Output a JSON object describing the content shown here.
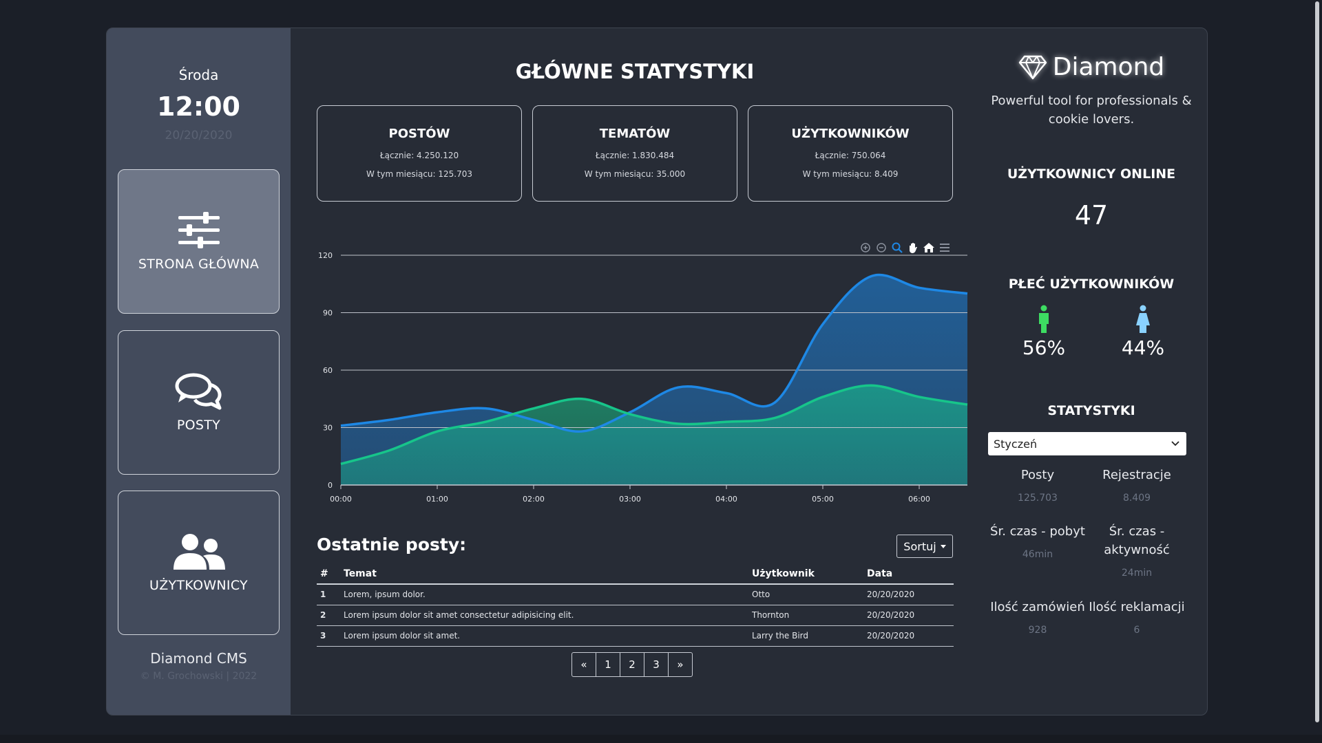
{
  "sidebar": {
    "day": "Środa",
    "time": "12:00",
    "date": "20/20/2020",
    "nav": [
      {
        "label": "STRONA GŁÓWNA"
      },
      {
        "label": "POSTY"
      },
      {
        "label": "UŻYTKOWNICY"
      }
    ],
    "cms_name": "Diamond CMS",
    "copyright": "© M. Grochowski | 2022"
  },
  "main": {
    "title": "GŁÓWNE STATYSTYKI",
    "cards": [
      {
        "title": "POSTÓW",
        "total": "Łącznie: 4.250.120",
        "month": "W tym miesiącu: 125.703"
      },
      {
        "title": "TEMATÓW",
        "total": "Łącznie: 1.830.484",
        "month": "W tym miesiącu: 35.000"
      },
      {
        "title": "UŻYTKOWNIKÓW",
        "total": "Łącznie: 750.064",
        "month": "W tym miesiącu: 8.409"
      }
    ],
    "posts_title": "Ostatnie posty:",
    "sort_label": "Sortuj",
    "table": {
      "headers": [
        "#",
        "Temat",
        "Użytkownik",
        "Data"
      ],
      "rows": [
        {
          "num": "1",
          "topic": "Lorem, ipsum dolor.",
          "user": "Otto",
          "date": "20/20/2020"
        },
        {
          "num": "2",
          "topic": "Lorem ipsum dolor sit amet consectetur adipisicing elit.",
          "user": "Thornton",
          "date": "20/20/2020"
        },
        {
          "num": "3",
          "topic": "Lorem ipsum dolor sit amet.",
          "user": "Larry the Bird",
          "date": "20/20/2020"
        }
      ]
    },
    "pagination": [
      "«",
      "1",
      "2",
      "3",
      "»"
    ]
  },
  "chart_data": {
    "type": "area",
    "x": [
      "00:00",
      "00:30",
      "01:00",
      "01:30",
      "02:00",
      "02:30",
      "03:00",
      "03:30",
      "04:00",
      "04:30",
      "05:00",
      "05:30",
      "06:00",
      "06:30"
    ],
    "categories": [
      "00:00",
      "01:00",
      "02:00",
      "03:00",
      "04:00",
      "05:00",
      "06:00"
    ],
    "series": [
      {
        "values": [
          31,
          34,
          38,
          40,
          34,
          28,
          38,
          51,
          48,
          43,
          84,
          109,
          103,
          100
        ],
        "color": "#1e88e5"
      },
      {
        "values": [
          11,
          18,
          28,
          33,
          40,
          45,
          37,
          32,
          33,
          35,
          46,
          52,
          46,
          42
        ],
        "color": "#17c58a"
      }
    ],
    "yticks": [
      0,
      30,
      60,
      90,
      120
    ],
    "ylim": [
      0,
      120
    ],
    "grid": true,
    "legend": "none"
  },
  "right": {
    "brand": "Diamond",
    "tagline": "Powerful tool for professionals & cookie lovers.",
    "online_heading": "UŻYTKOWNICY ONLINE",
    "online_count": "47",
    "gender_heading": "PŁEĆ UŻYTKOWNIKÓW",
    "male_pct": "56%",
    "female_pct": "44%",
    "male_color": "#3ddc62",
    "female_color": "#8ad2ff",
    "stats_heading": "STATYSTYKI",
    "month_select": "Styczeń",
    "stats": [
      {
        "label": "Posty",
        "value": "125.703"
      },
      {
        "label": "Rejestracje",
        "value": "8.409"
      },
      {
        "label": "Śr. czas - pobyt",
        "value": "46min"
      },
      {
        "label": "Śr. czas - aktywność",
        "value": "24min"
      },
      {
        "label": "Ilość zamówień",
        "value": "928"
      },
      {
        "label": "Ilość reklamacji",
        "value": "6"
      }
    ]
  }
}
